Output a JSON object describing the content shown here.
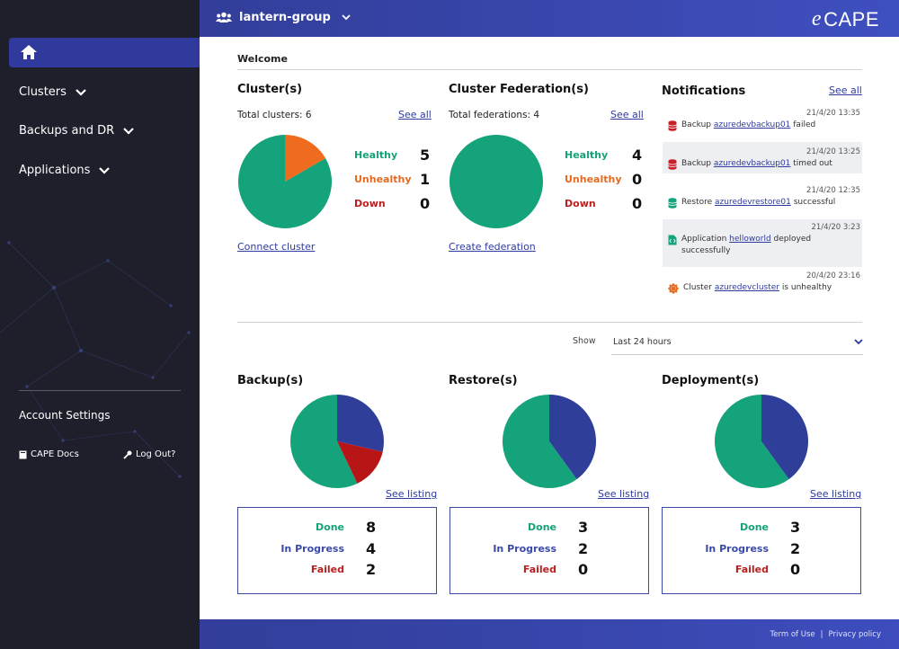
{
  "header": {
    "group_name": "lantern-group",
    "brand": "CAPE",
    "brand_prefix": "e"
  },
  "sidebar": {
    "items": [
      {
        "label": "Clusters"
      },
      {
        "label": "Backups and DR"
      },
      {
        "label": "Applications"
      }
    ],
    "account_settings": "Account Settings",
    "docs": "CAPE Docs",
    "logout": "Log Out?"
  },
  "main": {
    "welcome": "Welcome",
    "clusters": {
      "title": "Cluster(s)",
      "total": "Total clusters: 6",
      "see_all": "See all",
      "healthy_label": "Healthy",
      "healthy": 5,
      "unhealthy_label": "Unhealthy",
      "unhealthy": 1,
      "down_label": "Down",
      "down": 0,
      "action": "Connect cluster"
    },
    "federation": {
      "title": "Cluster Federation(s)",
      "total": "Total federations: 4",
      "see_all": "See all",
      "healthy_label": "Healthy",
      "healthy": 4,
      "unhealthy_label": "Unhealthy",
      "unhealthy": 0,
      "down_label": "Down",
      "down": 0,
      "action": "Create federation"
    },
    "notifications": {
      "title": "Notifications",
      "see_all": "See all",
      "items": [
        {
          "time": "21/4/20 13:35",
          "pre": "Backup ",
          "link": "azuredevbackup01",
          "post": " failed",
          "icon": "database-red-icon"
        },
        {
          "time": "21/4/20 13:25",
          "pre": "Backup ",
          "link": "azuredevbackup01",
          "post": " timed out",
          "icon": "database-red-icon"
        },
        {
          "time": "21/4/20 12:35",
          "pre": "Restore ",
          "link": "azuredevrestore01",
          "post": " successful",
          "icon": "database-green-icon"
        },
        {
          "time": "21/4/20 3:23",
          "pre": "Application ",
          "link": "helloworld",
          "post": " deployed successfully",
          "icon": "file-code-icon"
        },
        {
          "time": "20/4/20 23:16",
          "pre": "Cluster ",
          "link": "azuredevcluster",
          "post": " is unhealthy",
          "icon": "helm-icon"
        }
      ]
    },
    "show": {
      "label": "Show",
      "value": "Last 24 hours"
    },
    "backups": {
      "title": "Backup(s)",
      "see_listing": "See listing",
      "done_label": "Done",
      "done": 8,
      "progress_label": "In Progress",
      "progress": 4,
      "failed_label": "Failed",
      "failed": 2
    },
    "restores": {
      "title": "Restore(s)",
      "see_listing": "See listing",
      "done_label": "Done",
      "done": 3,
      "progress_label": "In Progress",
      "progress": 2,
      "failed_label": "Failed",
      "failed": 0
    },
    "deployments": {
      "title": "Deployment(s)",
      "see_listing": "See listing",
      "done_label": "Done",
      "done": 3,
      "progress_label": "In Progress",
      "progress": 2,
      "failed_label": "Failed",
      "failed": 0
    }
  },
  "footer": {
    "terms": "Term of Use",
    "sep": "|",
    "privacy": "Privacy policy"
  },
  "colors": {
    "sidebar_bg": "#1e1f2b",
    "accent": "#2f3a9c",
    "healthy": "#14a37a",
    "unhealthy": "#e56a1f",
    "down": "#b81f1f",
    "progress": "#3b4aa6"
  },
  "chart_data": [
    {
      "type": "pie",
      "title": "Cluster(s)",
      "labels": [
        "Healthy",
        "Unhealthy",
        "Down"
      ],
      "values": [
        5,
        1,
        0
      ]
    },
    {
      "type": "pie",
      "title": "Cluster Federation(s)",
      "labels": [
        "Healthy",
        "Unhealthy",
        "Down"
      ],
      "values": [
        4,
        0,
        0
      ]
    },
    {
      "type": "pie",
      "title": "Backup(s)",
      "labels": [
        "Done",
        "In Progress",
        "Failed"
      ],
      "values": [
        8,
        4,
        2
      ]
    },
    {
      "type": "pie",
      "title": "Restore(s)",
      "labels": [
        "Done",
        "In Progress",
        "Failed"
      ],
      "values": [
        3,
        2,
        0
      ]
    },
    {
      "type": "pie",
      "title": "Deployment(s)",
      "labels": [
        "Done",
        "In Progress",
        "Failed"
      ],
      "values": [
        3,
        2,
        0
      ]
    }
  ]
}
